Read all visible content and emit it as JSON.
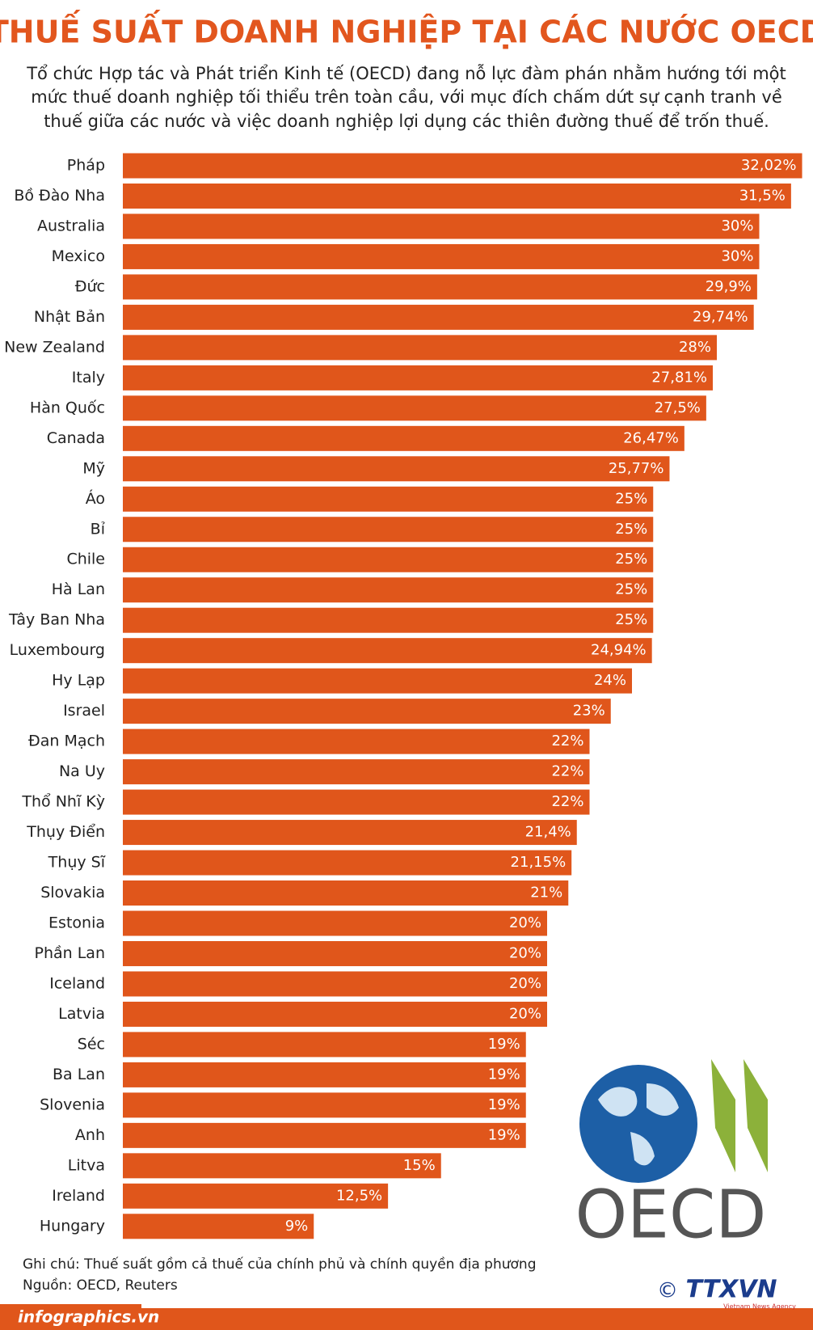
{
  "chart_data": {
    "type": "bar",
    "orientation": "horizontal",
    "title": "THUẾ SUẤT DOANH NGHIỆP TẠI CÁC NƯỚC OECD",
    "subtitle": [
      "Tổ chức Hợp tác và Phát triển Kinh tế (OECD) đang nỗ lực đàm phán nhằm hướng tới một",
      "mức thuế doanh nghiệp tối thiểu trên toàn cầu, với mục đích chấm dứt sự cạnh tranh về",
      "thuế giữa các nước và việc doanh nghiệp lợi dụng các thiên đường thuế để trốn thuế."
    ],
    "categories": [
      "Pháp",
      "Bồ Đào Nha",
      "Australia",
      "Mexico",
      "Đức",
      "Nhật Bản",
      "New Zealand",
      "Italy",
      "Hàn Quốc",
      "Canada",
      "Mỹ",
      "Áo",
      "Bỉ",
      "Chile",
      "Hà Lan",
      "Tây Ban Nha",
      "Luxembourg",
      "Hy Lạp",
      "Israel",
      "Đan Mạch",
      "Na Uy",
      "Thổ Nhĩ Kỳ",
      "Thụy Điển",
      "Thụy Sĩ",
      "Slovakia",
      "Estonia",
      "Phần Lan",
      "Iceland",
      "Latvia",
      "Séc",
      "Ba Lan",
      "Slovenia",
      "Anh",
      "Litva",
      "Ireland",
      "Hungary"
    ],
    "values": [
      32.02,
      31.5,
      30,
      30,
      29.9,
      29.74,
      28,
      27.81,
      27.5,
      26.47,
      25.77,
      25,
      25,
      25,
      25,
      25,
      24.94,
      24,
      23,
      22,
      22,
      22,
      21.4,
      21.15,
      21,
      20,
      20,
      20,
      20,
      19,
      19,
      19,
      19,
      15,
      12.5,
      9
    ],
    "value_labels": [
      "32,02%",
      "31,5%",
      "30%",
      "30%",
      "29,9%",
      "29,74%",
      "28%",
      "27,81%",
      "27,5%",
      "26,47%",
      "25,77%",
      "25%",
      "25%",
      "25%",
      "25%",
      "25%",
      "24,94%",
      "24%",
      "23%",
      "22%",
      "22%",
      "22%",
      "21,4%",
      "21,15%",
      "21%",
      "20%",
      "20%",
      "20%",
      "20%",
      "19%",
      "19%",
      "19%",
      "19%",
      "15%",
      "12,5%",
      "9%"
    ],
    "color": "#e0561b",
    "note": "Ghi chú: Thuế suất gồm cả thuế của chính phủ và chính quyền địa phương",
    "source": "Nguồn: OECD, Reuters"
  },
  "logo": {
    "text": "OECD"
  },
  "footer": {
    "site": "infographics.vn",
    "agency": "TTXVN",
    "agency_sub": "Vietnam News Agency",
    "copyright": "©"
  }
}
